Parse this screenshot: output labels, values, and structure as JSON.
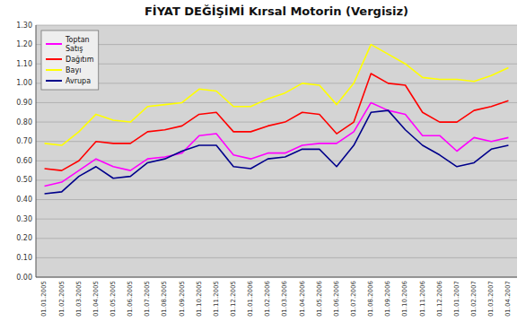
{
  "chart_data": {
    "type": "line",
    "title": "FİYAT DEĞİŞİMİ Kırsal Motorin (Vergisiz)",
    "categories": [
      "01.01.2005",
      "01.02.2005",
      "01.03.2005",
      "01.04.2005",
      "01.05.2005",
      "01.06.2005",
      "01.07.2005",
      "01.08.2005",
      "01.09.2005",
      "01.10.2005",
      "01.11.2005",
      "01.12.2005",
      "01.01.2006",
      "01.02.2006",
      "01.03.2006",
      "01.04.2006",
      "01.05.2006",
      "01.06.2006",
      "01.07.2006",
      "01.08.2006",
      "01.09.2006",
      "01.10.2006",
      "01.11.2006",
      "01.12.2006",
      "01.01.2007",
      "01.02.2007",
      "01.03.2007",
      "01.04.2007"
    ],
    "series": [
      {
        "name": "Toptan\nSatış",
        "color": "#ff00ff",
        "values": [
          0.47,
          0.49,
          0.55,
          0.61,
          0.57,
          0.55,
          0.61,
          0.62,
          0.64,
          0.73,
          0.74,
          0.63,
          0.61,
          0.64,
          0.64,
          0.68,
          0.69,
          0.69,
          0.75,
          0.9,
          0.86,
          0.84,
          0.73,
          0.73,
          0.65,
          0.72,
          0.7,
          0.72
        ]
      },
      {
        "name": "Dağıtım",
        "color": "#ff0000",
        "values": [
          0.56,
          0.55,
          0.6,
          0.7,
          0.69,
          0.69,
          0.75,
          0.76,
          0.78,
          0.84,
          0.85,
          0.75,
          0.75,
          0.78,
          0.8,
          0.85,
          0.84,
          0.74,
          0.8,
          1.05,
          1.0,
          0.99,
          0.85,
          0.8,
          0.8,
          0.86,
          0.88,
          0.91
        ]
      },
      {
        "name": "Bayı",
        "color": "#ffff00",
        "values": [
          0.69,
          0.68,
          0.75,
          0.84,
          0.81,
          0.8,
          0.88,
          0.89,
          0.9,
          0.97,
          0.96,
          0.88,
          0.88,
          0.92,
          0.95,
          1.0,
          0.99,
          0.89,
          1.0,
          1.2,
          1.15,
          1.1,
          1.03,
          1.02,
          1.02,
          1.01,
          1.04,
          1.08
        ]
      },
      {
        "name": "Avrupa",
        "color": "#00008b",
        "values": [
          0.43,
          0.44,
          0.52,
          0.57,
          0.51,
          0.52,
          0.59,
          0.61,
          0.65,
          0.68,
          0.68,
          0.57,
          0.56,
          0.61,
          0.62,
          0.66,
          0.66,
          0.57,
          0.68,
          0.85,
          0.86,
          0.76,
          0.68,
          0.63,
          0.57,
          0.59,
          0.66,
          0.68
        ]
      }
    ],
    "ylim": [
      0.0,
      1.3
    ],
    "yticks": [
      {
        "value": 0.0,
        "label": "0.00"
      },
      {
        "value": 0.1,
        "label": "0.10"
      },
      {
        "value": 0.2,
        "label": "0.20"
      },
      {
        "value": 0.3,
        "label": "0.30"
      },
      {
        "value": 0.4,
        "label": "0.40"
      },
      {
        "value": 0.5,
        "label": "0.50"
      },
      {
        "value": 0.6,
        "label": "0.60"
      },
      {
        "value": 0.7,
        "label": "0.70"
      },
      {
        "value": 0.8,
        "label": "0.80"
      },
      {
        "value": 0.9,
        "label": "0.90"
      },
      {
        "value": 1.0,
        "label": "1.00"
      },
      {
        "value": 1.1,
        "label": "1.10"
      },
      {
        "value": 1.2,
        "label": "1.20"
      },
      {
        "value": 1.3,
        "label": "1.30"
      }
    ],
    "grid": true,
    "legend": "upper left"
  }
}
